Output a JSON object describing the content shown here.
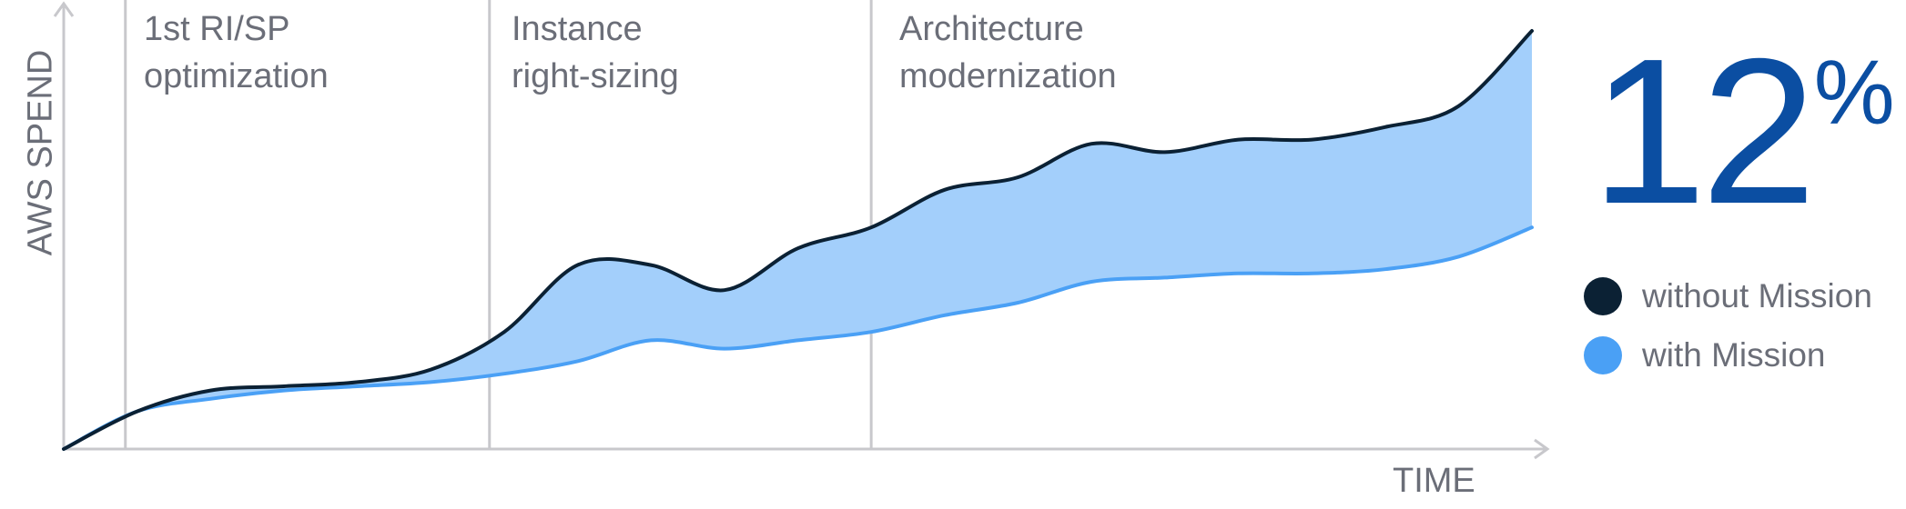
{
  "chart_data": {
    "type": "area",
    "ylabel": "AWS SPEND",
    "xlabel": "TIME",
    "x": [
      0,
      5,
      10,
      15,
      20,
      25,
      30,
      35,
      40,
      45,
      50,
      55,
      60,
      65,
      70,
      75,
      80,
      85,
      90,
      95,
      100
    ],
    "series": [
      {
        "name": "without Mission",
        "color": "#0b2134",
        "values": [
          0,
          9,
          14,
          15,
          16,
          19,
          28,
          44,
          44,
          38,
          48,
          53,
          62,
          65,
          73,
          71,
          74,
          74,
          77,
          82,
          100
        ]
      },
      {
        "name": "with Mission",
        "color": "#4aa0f5",
        "values": [
          0,
          9,
          12,
          14,
          15,
          16,
          18,
          21,
          26,
          24,
          26,
          28,
          32,
          35,
          40,
          41,
          42,
          42,
          43,
          46,
          53
        ]
      }
    ],
    "fill_between_color": "#a3cffb",
    "phases": [
      {
        "label_lines": [
          "1st RI/SP",
          "optimization"
        ],
        "x": 4.2
      },
      {
        "label_lines": [
          "Instance",
          "right-sizing"
        ],
        "x": 29
      },
      {
        "label_lines": [
          "Architecture",
          "modernization"
        ],
        "x": 55
      }
    ],
    "axis_color": "#c8c8cc",
    "grid": false
  },
  "highlight": {
    "value": "12",
    "unit": "%",
    "color": "#0b4ea2"
  },
  "legend": [
    {
      "label": "without Mission",
      "color": "#0b2134"
    },
    {
      "label": "with Mission",
      "color": "#4aa0f5"
    }
  ]
}
